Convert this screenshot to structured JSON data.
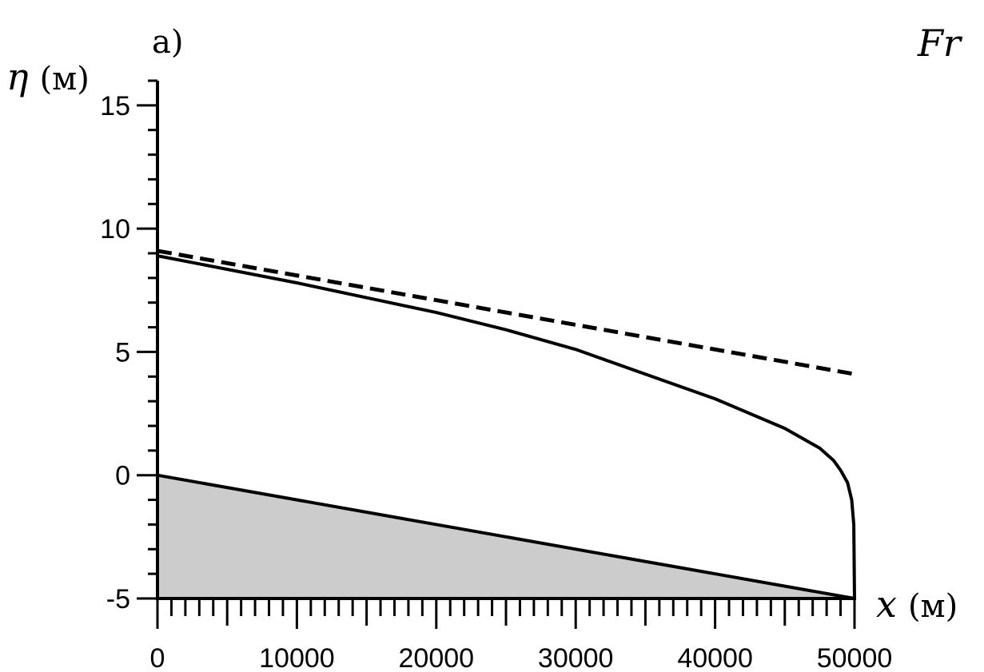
{
  "panel_label": "a)",
  "corner_label": "Fr",
  "chart_data": {
    "type": "line",
    "ylabel_symbol": "η",
    "ylabel_unit": "(м)",
    "xlabel_symbol": "x",
    "xlabel_unit": "(м)",
    "xlim": [
      0,
      50000
    ],
    "ylim": [
      -5,
      16
    ],
    "x_ticks": [
      0,
      10000,
      20000,
      30000,
      40000,
      50000
    ],
    "x_tick_labels": [
      "0",
      "10000",
      "20000",
      "30000",
      "40000",
      "50000"
    ],
    "y_ticks": [
      -5,
      0,
      5,
      10,
      15
    ],
    "y_tick_labels": [
      "-5",
      "0",
      "5",
      "10",
      "15"
    ],
    "grid": false,
    "series": [
      {
        "style": "dashed",
        "x": [
          0,
          50000
        ],
        "y": [
          9.1,
          4.1
        ]
      },
      {
        "style": "solid",
        "x": [
          0,
          10000,
          20000,
          25000,
          30000,
          35000,
          40000,
          45000,
          47500,
          48500,
          49000,
          49500,
          49800,
          49950,
          50000
        ],
        "y": [
          8.9,
          7.8,
          6.6,
          5.9,
          5.1,
          4.1,
          3.1,
          1.9,
          1.1,
          0.6,
          0.2,
          -0.3,
          -1.0,
          -2.0,
          -5.0
        ]
      }
    ],
    "bottom": {
      "fill_color": "#cccccc",
      "x": [
        0,
        50000
      ],
      "y": [
        0,
        -5
      ]
    }
  }
}
